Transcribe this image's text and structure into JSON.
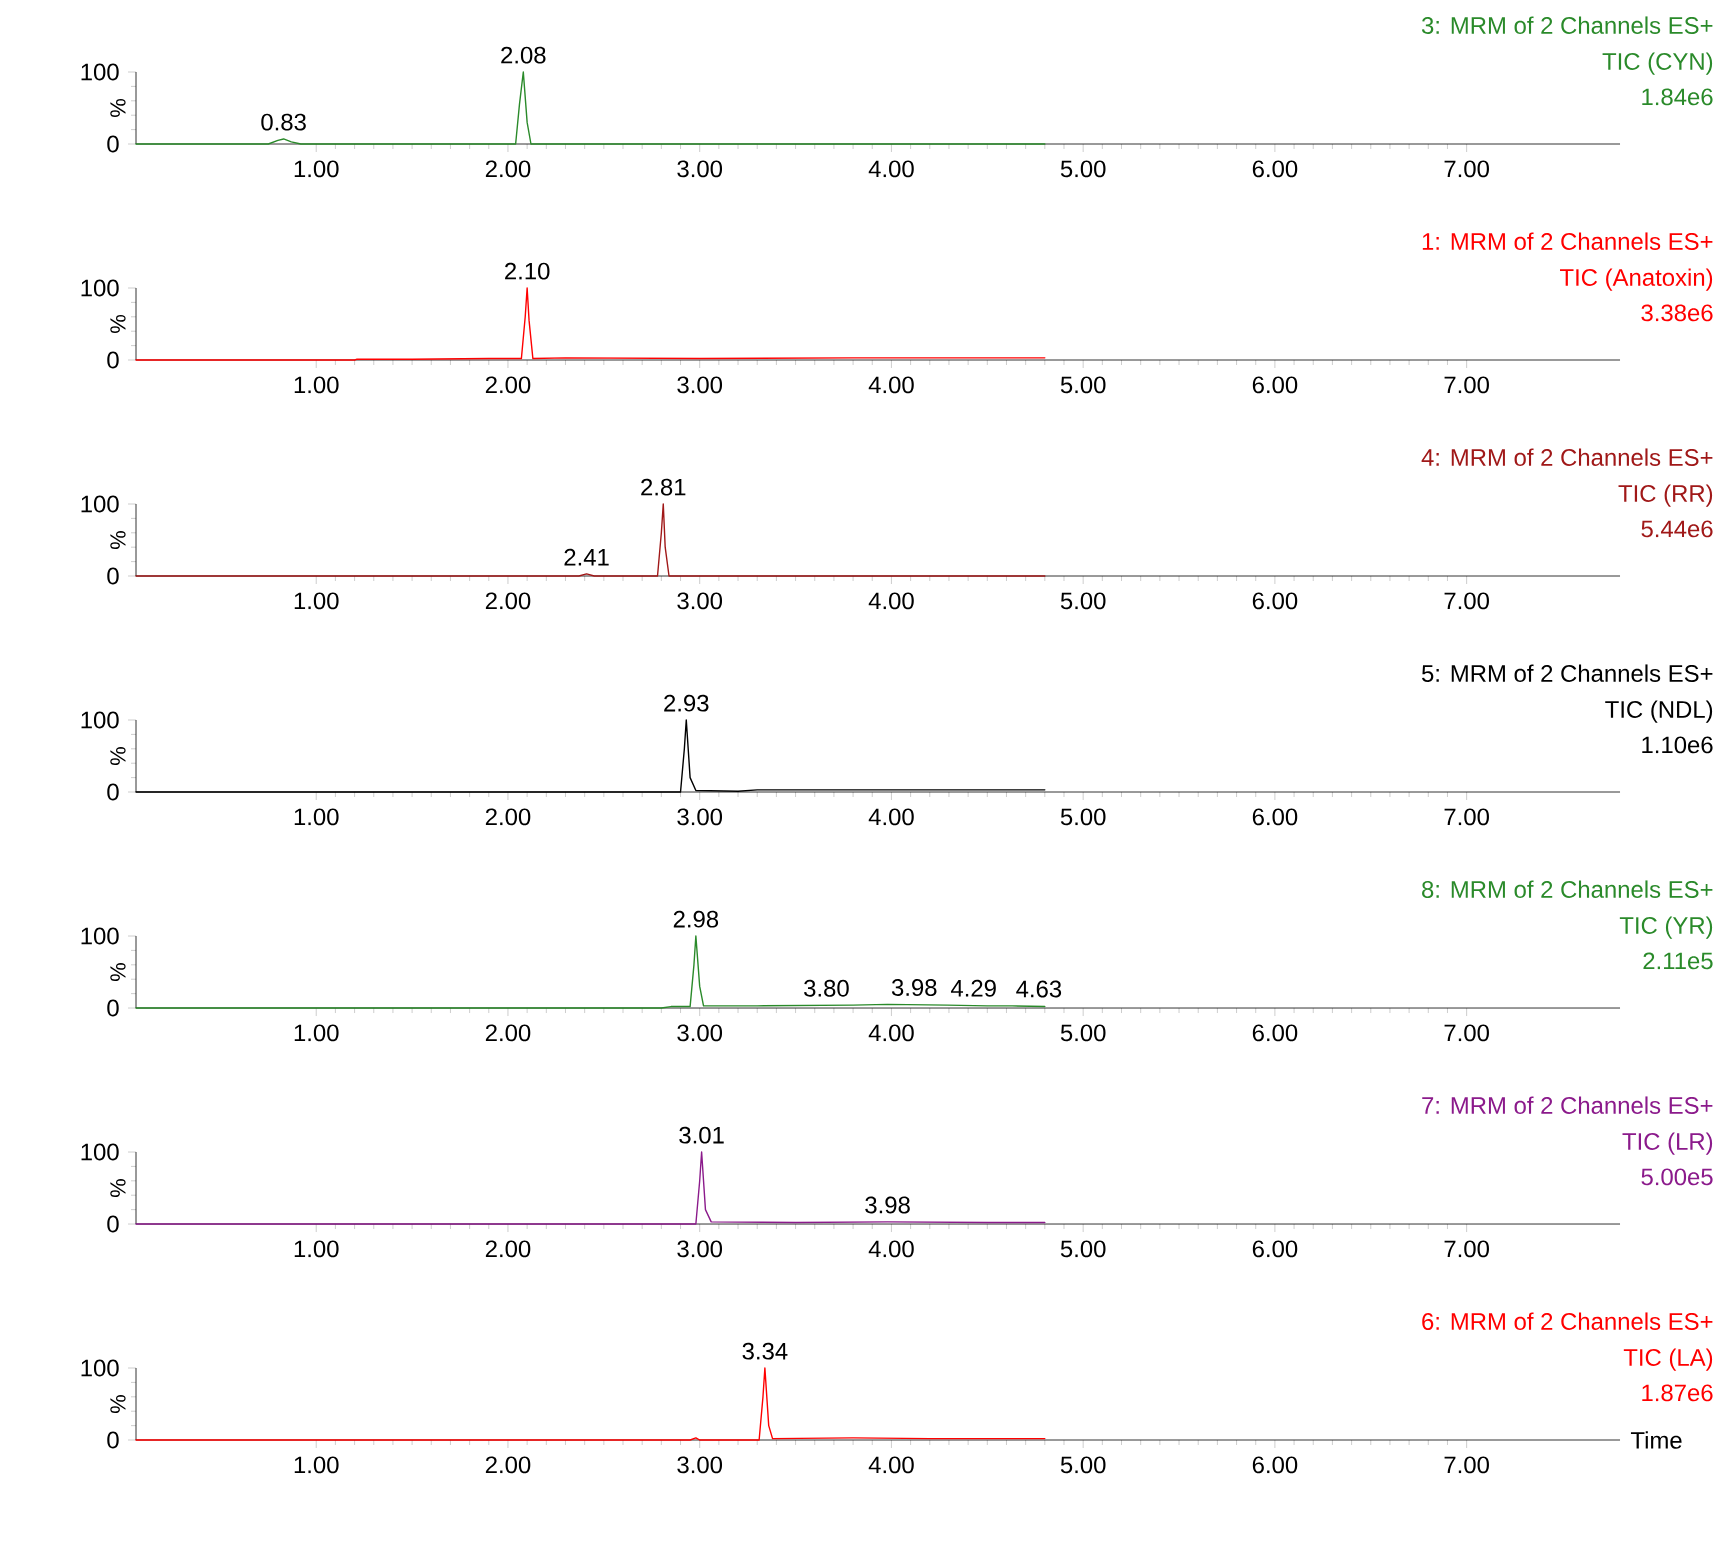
{
  "chart_data": [
    {
      "type": "line",
      "title": "3: MRM of 2 Channels ES+",
      "subtitle": "TIC (CYN)",
      "annotations": [
        "1.84e6",
        {
          "text": "0.83",
          "x": 0.83,
          "y": 7
        },
        {
          "text": "2.08",
          "x": 2.08,
          "y": 100
        }
      ],
      "color": "#2a8a2a",
      "ylabel": "%",
      "x": [
        0.06,
        0.75,
        0.8,
        0.83,
        0.87,
        0.92,
        2.04,
        2.06,
        2.08,
        2.1,
        2.12,
        4.8
      ],
      "values": [
        0,
        0,
        5,
        7,
        3,
        0,
        0,
        55,
        100,
        30,
        0,
        0
      ],
      "xlim": [
        0.06,
        7.8
      ],
      "xticks": [
        {
          "value": 1,
          "label": "1.00"
        },
        {
          "value": 2,
          "label": "2.00"
        },
        {
          "value": 3,
          "label": "3.00"
        },
        {
          "value": 4,
          "label": "4.00"
        },
        {
          "value": 5,
          "label": "5.00"
        },
        {
          "value": 6,
          "label": "6.00"
        },
        {
          "value": 7,
          "label": "7.00"
        }
      ],
      "ylim": [
        0,
        100
      ],
      "yticks": [
        0,
        100
      ]
    },
    {
      "type": "line",
      "title": "1: MRM of 2 Channels ES+",
      "subtitle": "TIC (Anatoxin)",
      "annotations": [
        "3.38e6",
        {
          "text": "2.10",
          "x": 2.1,
          "y": 100
        }
      ],
      "color": "#ff0000",
      "ylabel": "%",
      "x": [
        0.06,
        1.2,
        1.21,
        1.5,
        1.9,
        2.07,
        2.09,
        2.1,
        2.11,
        2.13,
        2.3,
        3.0,
        3.8,
        4.5,
        4.8
      ],
      "values": [
        0,
        0,
        1,
        1,
        2,
        2,
        60,
        100,
        55,
        2,
        3,
        2,
        3,
        3,
        3
      ],
      "xlim": [
        0.06,
        7.8
      ],
      "xticks": [
        {
          "value": 1,
          "label": "1.00"
        },
        {
          "value": 2,
          "label": "2.00"
        },
        {
          "value": 3,
          "label": "3.00"
        },
        {
          "value": 4,
          "label": "4.00"
        },
        {
          "value": 5,
          "label": "5.00"
        },
        {
          "value": 6,
          "label": "6.00"
        },
        {
          "value": 7,
          "label": "7.00"
        }
      ],
      "ylim": [
        0,
        100
      ],
      "yticks": [
        0,
        100
      ]
    },
    {
      "type": "line",
      "title": "4: MRM of 2 Channels ES+",
      "subtitle": "TIC (RR)",
      "annotations": [
        "5.44e6",
        {
          "text": "2.41",
          "x": 2.41,
          "y": 3
        },
        {
          "text": "2.81",
          "x": 2.81,
          "y": 100
        }
      ],
      "color": "#a01818",
      "ylabel": "%",
      "x": [
        0.06,
        2.37,
        2.41,
        2.45,
        2.78,
        2.8,
        2.81,
        2.82,
        2.84,
        4.8
      ],
      "values": [
        0,
        0,
        3,
        0,
        0,
        60,
        100,
        40,
        0,
        0
      ],
      "xlim": [
        0.06,
        7.8
      ],
      "xticks": [
        {
          "value": 1,
          "label": "1.00"
        },
        {
          "value": 2,
          "label": "2.00"
        },
        {
          "value": 3,
          "label": "3.00"
        },
        {
          "value": 4,
          "label": "4.00"
        },
        {
          "value": 5,
          "label": "5.00"
        },
        {
          "value": 6,
          "label": "6.00"
        },
        {
          "value": 7,
          "label": "7.00"
        }
      ],
      "ylim": [
        0,
        100
      ],
      "yticks": [
        0,
        100
      ]
    },
    {
      "type": "line",
      "title": "5: MRM of 2 Channels ES+",
      "subtitle": "TIC (NDL)",
      "annotations": [
        "1.10e6",
        {
          "text": "2.93",
          "x": 2.93,
          "y": 100
        }
      ],
      "color": "#000000",
      "ylabel": "%",
      "x": [
        0.06,
        2.9,
        2.92,
        2.93,
        2.95,
        2.98,
        3.2,
        3.3,
        4.0,
        4.8
      ],
      "values": [
        0,
        0,
        60,
        100,
        20,
        2,
        1,
        3,
        3,
        3
      ],
      "xlim": [
        0.06,
        7.8
      ],
      "xticks": [
        {
          "value": 1,
          "label": "1.00"
        },
        {
          "value": 2,
          "label": "2.00"
        },
        {
          "value": 3,
          "label": "3.00"
        },
        {
          "value": 4,
          "label": "4.00"
        },
        {
          "value": 5,
          "label": "5.00"
        },
        {
          "value": 6,
          "label": "6.00"
        },
        {
          "value": 7,
          "label": "7.00"
        }
      ],
      "ylim": [
        0,
        100
      ],
      "yticks": [
        0,
        100
      ]
    },
    {
      "type": "line",
      "title": "8: MRM of 2 Channels ES+",
      "subtitle": "TIC (YR)",
      "annotations": [
        "2.11e5",
        {
          "text": "2.98",
          "x": 2.98,
          "y": 100
        },
        {
          "text": "3.80",
          "x": 3.8,
          "y": 4
        },
        {
          "text": "3.98",
          "x": 3.98,
          "y": 5
        },
        {
          "text": "4.29",
          "x": 4.29,
          "y": 4
        },
        {
          "text": "4.63",
          "x": 4.63,
          "y": 3
        }
      ],
      "color": "#2a8a2a",
      "ylabel": "%",
      "x": [
        0.06,
        2.8,
        2.85,
        2.95,
        2.97,
        2.98,
        3.0,
        3.02,
        3.3,
        3.8,
        3.98,
        4.29,
        4.5,
        4.63,
        4.8
      ],
      "values": [
        0,
        0,
        2,
        2,
        60,
        100,
        30,
        3,
        3,
        4,
        5,
        4,
        3,
        3,
        2
      ],
      "xlim": [
        0.06,
        7.8
      ],
      "xticks": [
        {
          "value": 1,
          "label": "1.00"
        },
        {
          "value": 2,
          "label": "2.00"
        },
        {
          "value": 3,
          "label": "3.00"
        },
        {
          "value": 4,
          "label": "4.00"
        },
        {
          "value": 5,
          "label": "5.00"
        },
        {
          "value": 6,
          "label": "6.00"
        },
        {
          "value": 7,
          "label": "7.00"
        }
      ],
      "ylim": [
        0,
        100
      ],
      "yticks": [
        0,
        100
      ]
    },
    {
      "type": "line",
      "title": "7: MRM of 2 Channels ES+",
      "subtitle": "TIC (LR)",
      "annotations": [
        "5.00e5",
        {
          "text": "3.01",
          "x": 3.01,
          "y": 100
        },
        {
          "text": "3.98",
          "x": 3.98,
          "y": 3
        }
      ],
      "color": "#8b1a8b",
      "ylabel": "%",
      "x": [
        0.06,
        2.98,
        3.0,
        3.01,
        3.03,
        3.06,
        3.5,
        3.98,
        4.5,
        4.8
      ],
      "values": [
        0,
        0,
        60,
        100,
        20,
        3,
        2,
        3,
        2,
        2
      ],
      "xlim": [
        0.06,
        7.8
      ],
      "xticks": [
        {
          "value": 1,
          "label": "1.00"
        },
        {
          "value": 2,
          "label": "2.00"
        },
        {
          "value": 3,
          "label": "3.00"
        },
        {
          "value": 4,
          "label": "4.00"
        },
        {
          "value": 5,
          "label": "5.00"
        },
        {
          "value": 6,
          "label": "6.00"
        },
        {
          "value": 7,
          "label": "7.00"
        }
      ],
      "ylim": [
        0,
        100
      ],
      "yticks": [
        0,
        100
      ]
    },
    {
      "type": "line",
      "title": "6: MRM of 2 Channels ES+",
      "subtitle": "TIC (LA)",
      "annotations": [
        "1.87e6",
        {
          "text": "3.34",
          "x": 3.34,
          "y": 100
        }
      ],
      "color": "#ff0000",
      "ylabel": "%",
      "xlabel": "Time",
      "x": [
        0.06,
        2.95,
        2.98,
        3.0,
        3.31,
        3.33,
        3.34,
        3.36,
        3.38,
        3.8,
        4.2,
        4.8
      ],
      "values": [
        0,
        0,
        3,
        0,
        0,
        60,
        100,
        20,
        2,
        3,
        2,
        2
      ],
      "xlim": [
        0.06,
        7.8
      ],
      "xticks": [
        {
          "value": 1,
          "label": "1.00"
        },
        {
          "value": 2,
          "label": "2.00"
        },
        {
          "value": 3,
          "label": "3.00"
        },
        {
          "value": 4,
          "label": "4.00"
        },
        {
          "value": 5,
          "label": "5.00"
        },
        {
          "value": 6,
          "label": "6.00"
        },
        {
          "value": 7,
          "label": "7.00"
        }
      ],
      "ylim": [
        0,
        100
      ],
      "yticks": [
        0,
        100
      ]
    }
  ]
}
